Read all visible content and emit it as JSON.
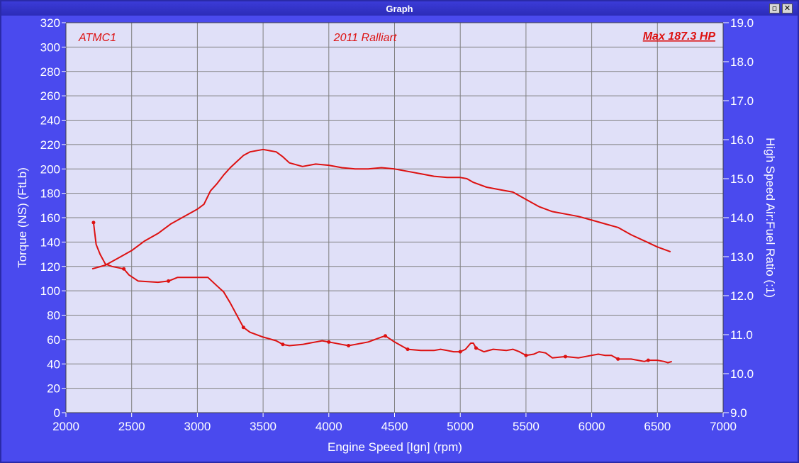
{
  "window": {
    "title": "Graph",
    "restore_symbol": "▫",
    "close_symbol": "✕"
  },
  "chart_data": {
    "type": "line",
    "annotations": {
      "left": "ATMC1",
      "center": "2011 Ralliart",
      "right": "Max 187.3 HP"
    },
    "xlabel": "Engine Speed [Ign] (rpm)",
    "ylabel_left": "Torque (NS) (FtLb)",
    "ylabel_right": "High Speed Air:Fuel Ratio (:1)",
    "xlim": [
      2000,
      7000
    ],
    "xticks": [
      2000,
      2500,
      3000,
      3500,
      4000,
      4500,
      5000,
      5500,
      6000,
      6500,
      7000
    ],
    "ylim_left": [
      0,
      320
    ],
    "yticks_left": [
      0,
      20,
      40,
      60,
      80,
      100,
      120,
      140,
      160,
      180,
      200,
      220,
      240,
      260,
      280,
      300,
      320
    ],
    "ylim_right": [
      9.0,
      19.0
    ],
    "yticks_right": [
      "9.0",
      "10.0",
      "11.0",
      "12.0",
      "13.0",
      "14.0",
      "15.0",
      "16.0",
      "17.0",
      "18.0",
      "19.0"
    ],
    "grid": true,
    "colors": {
      "background": "#4a4aee",
      "plot": "#e0e0f8",
      "grid": "#808080",
      "series": "#dd1111",
      "text": "#ffffff"
    },
    "series": [
      {
        "axis": "left",
        "values": [
          [
            2200,
            118
          ],
          [
            2300,
            121
          ],
          [
            2400,
            127
          ],
          [
            2500,
            133
          ],
          [
            2600,
            141
          ],
          [
            2700,
            147
          ],
          [
            2800,
            155
          ],
          [
            2900,
            161
          ],
          [
            3000,
            167
          ],
          [
            3050,
            171
          ],
          [
            3100,
            182
          ],
          [
            3150,
            188
          ],
          [
            3200,
            195
          ],
          [
            3250,
            201
          ],
          [
            3300,
            206
          ],
          [
            3350,
            211
          ],
          [
            3400,
            214
          ],
          [
            3500,
            216
          ],
          [
            3600,
            214
          ],
          [
            3650,
            210
          ],
          [
            3700,
            205
          ],
          [
            3800,
            202
          ],
          [
            3900,
            204
          ],
          [
            4000,
            203
          ],
          [
            4100,
            201
          ],
          [
            4200,
            200
          ],
          [
            4300,
            200
          ],
          [
            4400,
            201
          ],
          [
            4500,
            200
          ],
          [
            4600,
            198
          ],
          [
            4700,
            196
          ],
          [
            4800,
            194
          ],
          [
            4900,
            193
          ],
          [
            5000,
            193
          ],
          [
            5050,
            192
          ],
          [
            5100,
            189
          ],
          [
            5200,
            185
          ],
          [
            5300,
            183
          ],
          [
            5400,
            181
          ],
          [
            5500,
            175
          ],
          [
            5600,
            169
          ],
          [
            5700,
            165
          ],
          [
            5800,
            163
          ],
          [
            5900,
            161
          ],
          [
            6000,
            158
          ],
          [
            6100,
            155
          ],
          [
            6200,
            152
          ],
          [
            6300,
            146
          ],
          [
            6400,
            141
          ],
          [
            6500,
            136
          ],
          [
            6600,
            132
          ]
        ]
      },
      {
        "axis": "left",
        "values": [
          [
            2210,
            156
          ],
          [
            2230,
            138
          ],
          [
            2260,
            130
          ],
          [
            2300,
            122
          ],
          [
            2350,
            120
          ],
          [
            2440,
            118
          ],
          [
            2480,
            113
          ],
          [
            2550,
            108
          ],
          [
            2700,
            107
          ],
          [
            2780,
            108
          ],
          [
            2850,
            111
          ],
          [
            3000,
            111
          ],
          [
            3080,
            111
          ],
          [
            3150,
            104
          ],
          [
            3200,
            99
          ],
          [
            3250,
            90
          ],
          [
            3300,
            80
          ],
          [
            3350,
            70
          ],
          [
            3400,
            66
          ],
          [
            3500,
            62
          ],
          [
            3600,
            59
          ],
          [
            3650,
            56
          ],
          [
            3700,
            55
          ],
          [
            3800,
            56
          ],
          [
            3850,
            57
          ],
          [
            3900,
            58
          ],
          [
            3950,
            59
          ],
          [
            4000,
            58
          ],
          [
            4100,
            56
          ],
          [
            4150,
            55
          ],
          [
            4200,
            56
          ],
          [
            4300,
            58
          ],
          [
            4400,
            62
          ],
          [
            4430,
            63
          ],
          [
            4500,
            58
          ],
          [
            4550,
            55
          ],
          [
            4600,
            52
          ],
          [
            4700,
            51
          ],
          [
            4800,
            51
          ],
          [
            4850,
            52
          ],
          [
            4900,
            51
          ],
          [
            4950,
            50
          ],
          [
            5000,
            50
          ],
          [
            5040,
            52
          ],
          [
            5080,
            57
          ],
          [
            5100,
            57
          ],
          [
            5120,
            53
          ],
          [
            5180,
            50
          ],
          [
            5250,
            52
          ],
          [
            5350,
            51
          ],
          [
            5400,
            52
          ],
          [
            5450,
            50
          ],
          [
            5500,
            47
          ],
          [
            5560,
            48
          ],
          [
            5600,
            50
          ],
          [
            5650,
            49
          ],
          [
            5700,
            45
          ],
          [
            5800,
            46
          ],
          [
            5900,
            45
          ],
          [
            6000,
            47
          ],
          [
            6050,
            48
          ],
          [
            6100,
            47
          ],
          [
            6150,
            47
          ],
          [
            6200,
            44
          ],
          [
            6300,
            44
          ],
          [
            6400,
            42
          ],
          [
            6430,
            43
          ],
          [
            6500,
            43
          ],
          [
            6550,
            42
          ],
          [
            6580,
            41
          ],
          [
            6610,
            42
          ]
        ]
      }
    ]
  }
}
